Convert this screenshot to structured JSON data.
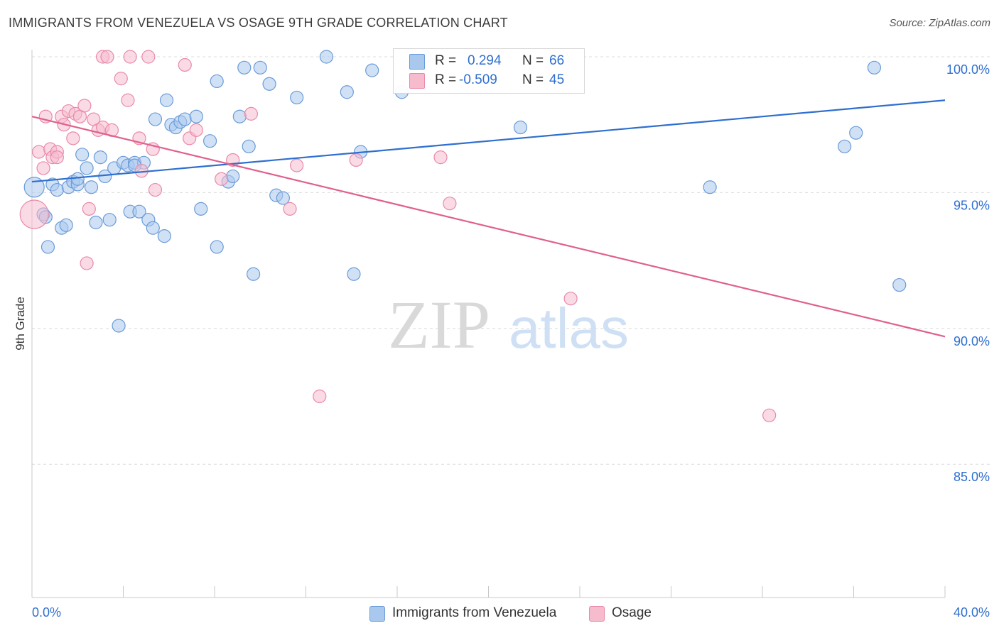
{
  "header": {
    "title": "IMMIGRANTS FROM VENEZUELA VS OSAGE 9TH GRADE CORRELATION CHART",
    "source": "Source: ZipAtlas.com"
  },
  "legend": {
    "series1": {
      "r_label": "R =",
      "r_value": "0.294",
      "n_label": "N =",
      "n_value": "66"
    },
    "series2": {
      "r_label": "R =",
      "r_value": "-0.509",
      "n_label": "N =",
      "n_value": "45"
    }
  },
  "bottom_legend": {
    "series1_label": "Immigrants from Venezuela",
    "series2_label": "Osage"
  },
  "colors": {
    "blue_fill": "#a9c8ee",
    "blue_stroke": "#6a9bd8",
    "blue_line": "#2f6fcf",
    "pink_fill": "#f6bccd",
    "pink_stroke": "#e98aa8",
    "pink_line": "#e0608d",
    "tick_label": "#2f6fcf",
    "grid": "#dcdcdc"
  },
  "chart_data": {
    "type": "scatter",
    "title": "IMMIGRANTS FROM VENEZUELA VS OSAGE 9TH GRADE CORRELATION CHART",
    "xlabel": "",
    "ylabel": "9th Grade",
    "xlim": [
      0,
      40
    ],
    "ylim": [
      80.5,
      100.8
    ],
    "x_tick_labels": [
      "0.0%",
      "40.0%"
    ],
    "y_ticks": [
      85,
      90,
      95,
      100
    ],
    "y_tick_labels": [
      "85.0%",
      "90.0%",
      "95.0%",
      "100.0%"
    ],
    "grid": true,
    "legend_position": "top-center",
    "watermark": {
      "part1": "ZIP",
      "part2": "atlas"
    },
    "series": [
      {
        "name": "Immigrants from Venezuela",
        "R": 0.294,
        "N": 66,
        "trend": {
          "x": [
            0,
            40
          ],
          "y": [
            95.4,
            98.4
          ]
        },
        "points": [
          [
            0.1,
            95.2,
            14
          ],
          [
            0.5,
            94.2,
            9
          ],
          [
            0.7,
            93.0,
            9
          ],
          [
            0.9,
            95.3,
            9
          ],
          [
            1.1,
            95.1,
            9
          ],
          [
            1.3,
            93.7,
            9
          ],
          [
            1.5,
            93.8,
            9
          ],
          [
            1.6,
            95.2,
            9
          ],
          [
            1.8,
            95.4,
            9
          ],
          [
            2.0,
            95.3,
            9
          ],
          [
            2.2,
            96.4,
            9
          ],
          [
            2.4,
            95.9,
            9
          ],
          [
            2.6,
            95.2,
            9
          ],
          [
            2.8,
            93.9,
            9
          ],
          [
            3.0,
            96.3,
            9
          ],
          [
            3.2,
            95.6,
            9
          ],
          [
            3.4,
            94.0,
            9
          ],
          [
            3.6,
            95.9,
            9
          ],
          [
            3.8,
            90.1,
            9
          ],
          [
            4.0,
            96.1,
            9
          ],
          [
            4.2,
            96.0,
            9
          ],
          [
            4.3,
            94.3,
            9
          ],
          [
            4.5,
            96.1,
            9
          ],
          [
            4.7,
            94.3,
            9
          ],
          [
            4.9,
            96.1,
            9
          ],
          [
            5.1,
            94.0,
            9
          ],
          [
            5.3,
            93.7,
            9
          ],
          [
            5.4,
            97.7,
            9
          ],
          [
            5.8,
            93.4,
            9
          ],
          [
            5.9,
            98.4,
            9
          ],
          [
            6.1,
            97.5,
            9
          ],
          [
            6.3,
            97.4,
            9
          ],
          [
            6.5,
            97.6,
            9
          ],
          [
            6.7,
            97.7,
            9
          ],
          [
            7.2,
            97.8,
            9
          ],
          [
            7.4,
            94.4,
            9
          ],
          [
            7.8,
            96.9,
            9
          ],
          [
            8.1,
            99.1,
            9
          ],
          [
            8.1,
            93.0,
            9
          ],
          [
            8.6,
            95.4,
            9
          ],
          [
            8.8,
            95.6,
            9
          ],
          [
            9.1,
            97.8,
            9
          ],
          [
            9.3,
            99.6,
            9
          ],
          [
            9.5,
            96.7,
            9
          ],
          [
            9.7,
            92.0,
            9
          ],
          [
            10.0,
            99.6,
            9
          ],
          [
            10.4,
            99.0,
            9
          ],
          [
            10.7,
            94.9,
            9
          ],
          [
            11.0,
            94.8,
            9
          ],
          [
            11.6,
            98.5,
            9
          ],
          [
            12.9,
            100.0,
            9
          ],
          [
            13.8,
            98.7,
            9
          ],
          [
            14.1,
            92.0,
            9
          ],
          [
            14.4,
            96.5,
            9
          ],
          [
            14.9,
            99.5,
            9
          ],
          [
            16.2,
            98.7,
            9
          ],
          [
            17.2,
            100.0,
            9
          ],
          [
            21.4,
            97.4,
            9
          ],
          [
            29.7,
            95.2,
            9
          ],
          [
            35.6,
            96.7,
            9
          ],
          [
            36.1,
            97.2,
            9
          ],
          [
            36.9,
            99.6,
            9
          ],
          [
            38.0,
            91.6,
            9
          ],
          [
            0.6,
            94.1,
            9
          ],
          [
            2.0,
            95.5,
            9
          ],
          [
            4.5,
            96.0,
            9
          ]
        ]
      },
      {
        "name": "Osage",
        "R": -0.509,
        "N": 45,
        "trend": {
          "x": [
            0,
            40
          ],
          "y": [
            97.8,
            89.7
          ]
        },
        "points": [
          [
            0.1,
            94.2,
            20
          ],
          [
            0.3,
            96.5,
            9
          ],
          [
            0.5,
            95.9,
            9
          ],
          [
            0.6,
            97.8,
            9
          ],
          [
            0.8,
            96.6,
            9
          ],
          [
            0.9,
            96.3,
            9
          ],
          [
            1.1,
            96.5,
            9
          ],
          [
            1.3,
            97.8,
            9
          ],
          [
            1.4,
            97.5,
            9
          ],
          [
            1.6,
            98.0,
            9
          ],
          [
            1.8,
            97.0,
            9
          ],
          [
            1.9,
            97.9,
            9
          ],
          [
            2.1,
            97.8,
            9
          ],
          [
            2.3,
            98.2,
            9
          ],
          [
            2.4,
            92.4,
            9
          ],
          [
            2.5,
            94.4,
            9
          ],
          [
            2.7,
            97.7,
            9
          ],
          [
            2.9,
            97.3,
            9
          ],
          [
            3.1,
            97.4,
            9
          ],
          [
            3.1,
            100.0,
            9
          ],
          [
            3.3,
            100.0,
            9
          ],
          [
            3.5,
            97.3,
            9
          ],
          [
            3.9,
            99.2,
            9
          ],
          [
            4.2,
            98.4,
            9
          ],
          [
            4.3,
            100.0,
            9
          ],
          [
            4.7,
            97.0,
            9
          ],
          [
            4.8,
            95.8,
            9
          ],
          [
            5.1,
            100.0,
            9
          ],
          [
            5.3,
            96.6,
            9
          ],
          [
            5.4,
            95.1,
            9
          ],
          [
            6.7,
            99.7,
            9
          ],
          [
            6.9,
            97.0,
            9
          ],
          [
            7.2,
            97.3,
            9
          ],
          [
            8.3,
            95.5,
            9
          ],
          [
            8.8,
            96.2,
            9
          ],
          [
            9.6,
            97.9,
            9
          ],
          [
            11.3,
            94.4,
            9
          ],
          [
            11.6,
            96.0,
            9
          ],
          [
            12.6,
            87.5,
            9
          ],
          [
            14.2,
            96.2,
            9
          ],
          [
            17.9,
            96.3,
            9
          ],
          [
            18.3,
            94.6,
            9
          ],
          [
            23.6,
            91.1,
            9
          ],
          [
            32.3,
            86.8,
            9
          ],
          [
            1.1,
            96.3,
            9
          ]
        ]
      }
    ]
  }
}
